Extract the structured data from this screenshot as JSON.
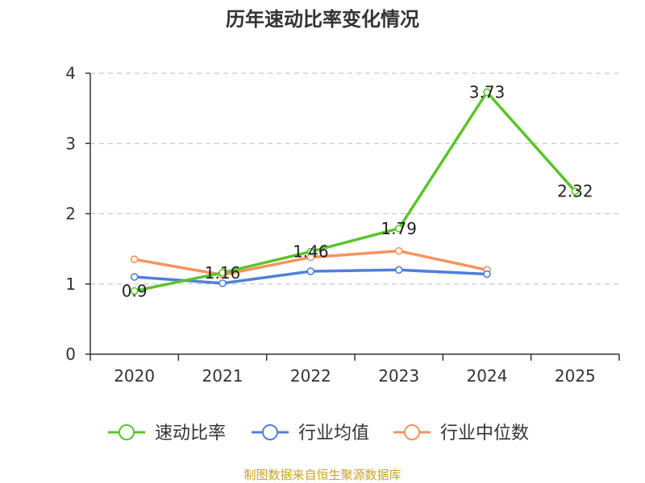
{
  "chart_data": {
    "type": "line",
    "title": "历年速动比率变化情况",
    "categories": [
      "2020",
      "2021",
      "2022",
      "2023",
      "2024",
      "2025"
    ],
    "ylim": [
      0,
      4
    ],
    "yticks": [
      "0",
      "1",
      "2",
      "3",
      "4"
    ],
    "grid": true,
    "legend_position": "bottom",
    "series": [
      {
        "name": "速动比率",
        "color": "#5cc42a",
        "values": [
          0.9,
          1.16,
          1.46,
          1.79,
          3.73,
          2.32
        ],
        "labels": [
          "0.9",
          "1.16",
          "1.46",
          "1.79",
          "3.73",
          "2.32"
        ],
        "segments_drawn": [
          true,
          true,
          true,
          true,
          true
        ]
      },
      {
        "name": "行业均值",
        "color": "#4f7fd8",
        "values": [
          1.1,
          1.01,
          1.18,
          1.2,
          1.14,
          null
        ]
      },
      {
        "name": "行业中位数",
        "color": "#f5935c",
        "values": [
          1.35,
          1.13,
          1.38,
          1.47,
          1.2,
          null
        ]
      }
    ]
  },
  "source": {
    "text": "制图数据来自恒生聚源数据库",
    "color": "#c9a227"
  }
}
